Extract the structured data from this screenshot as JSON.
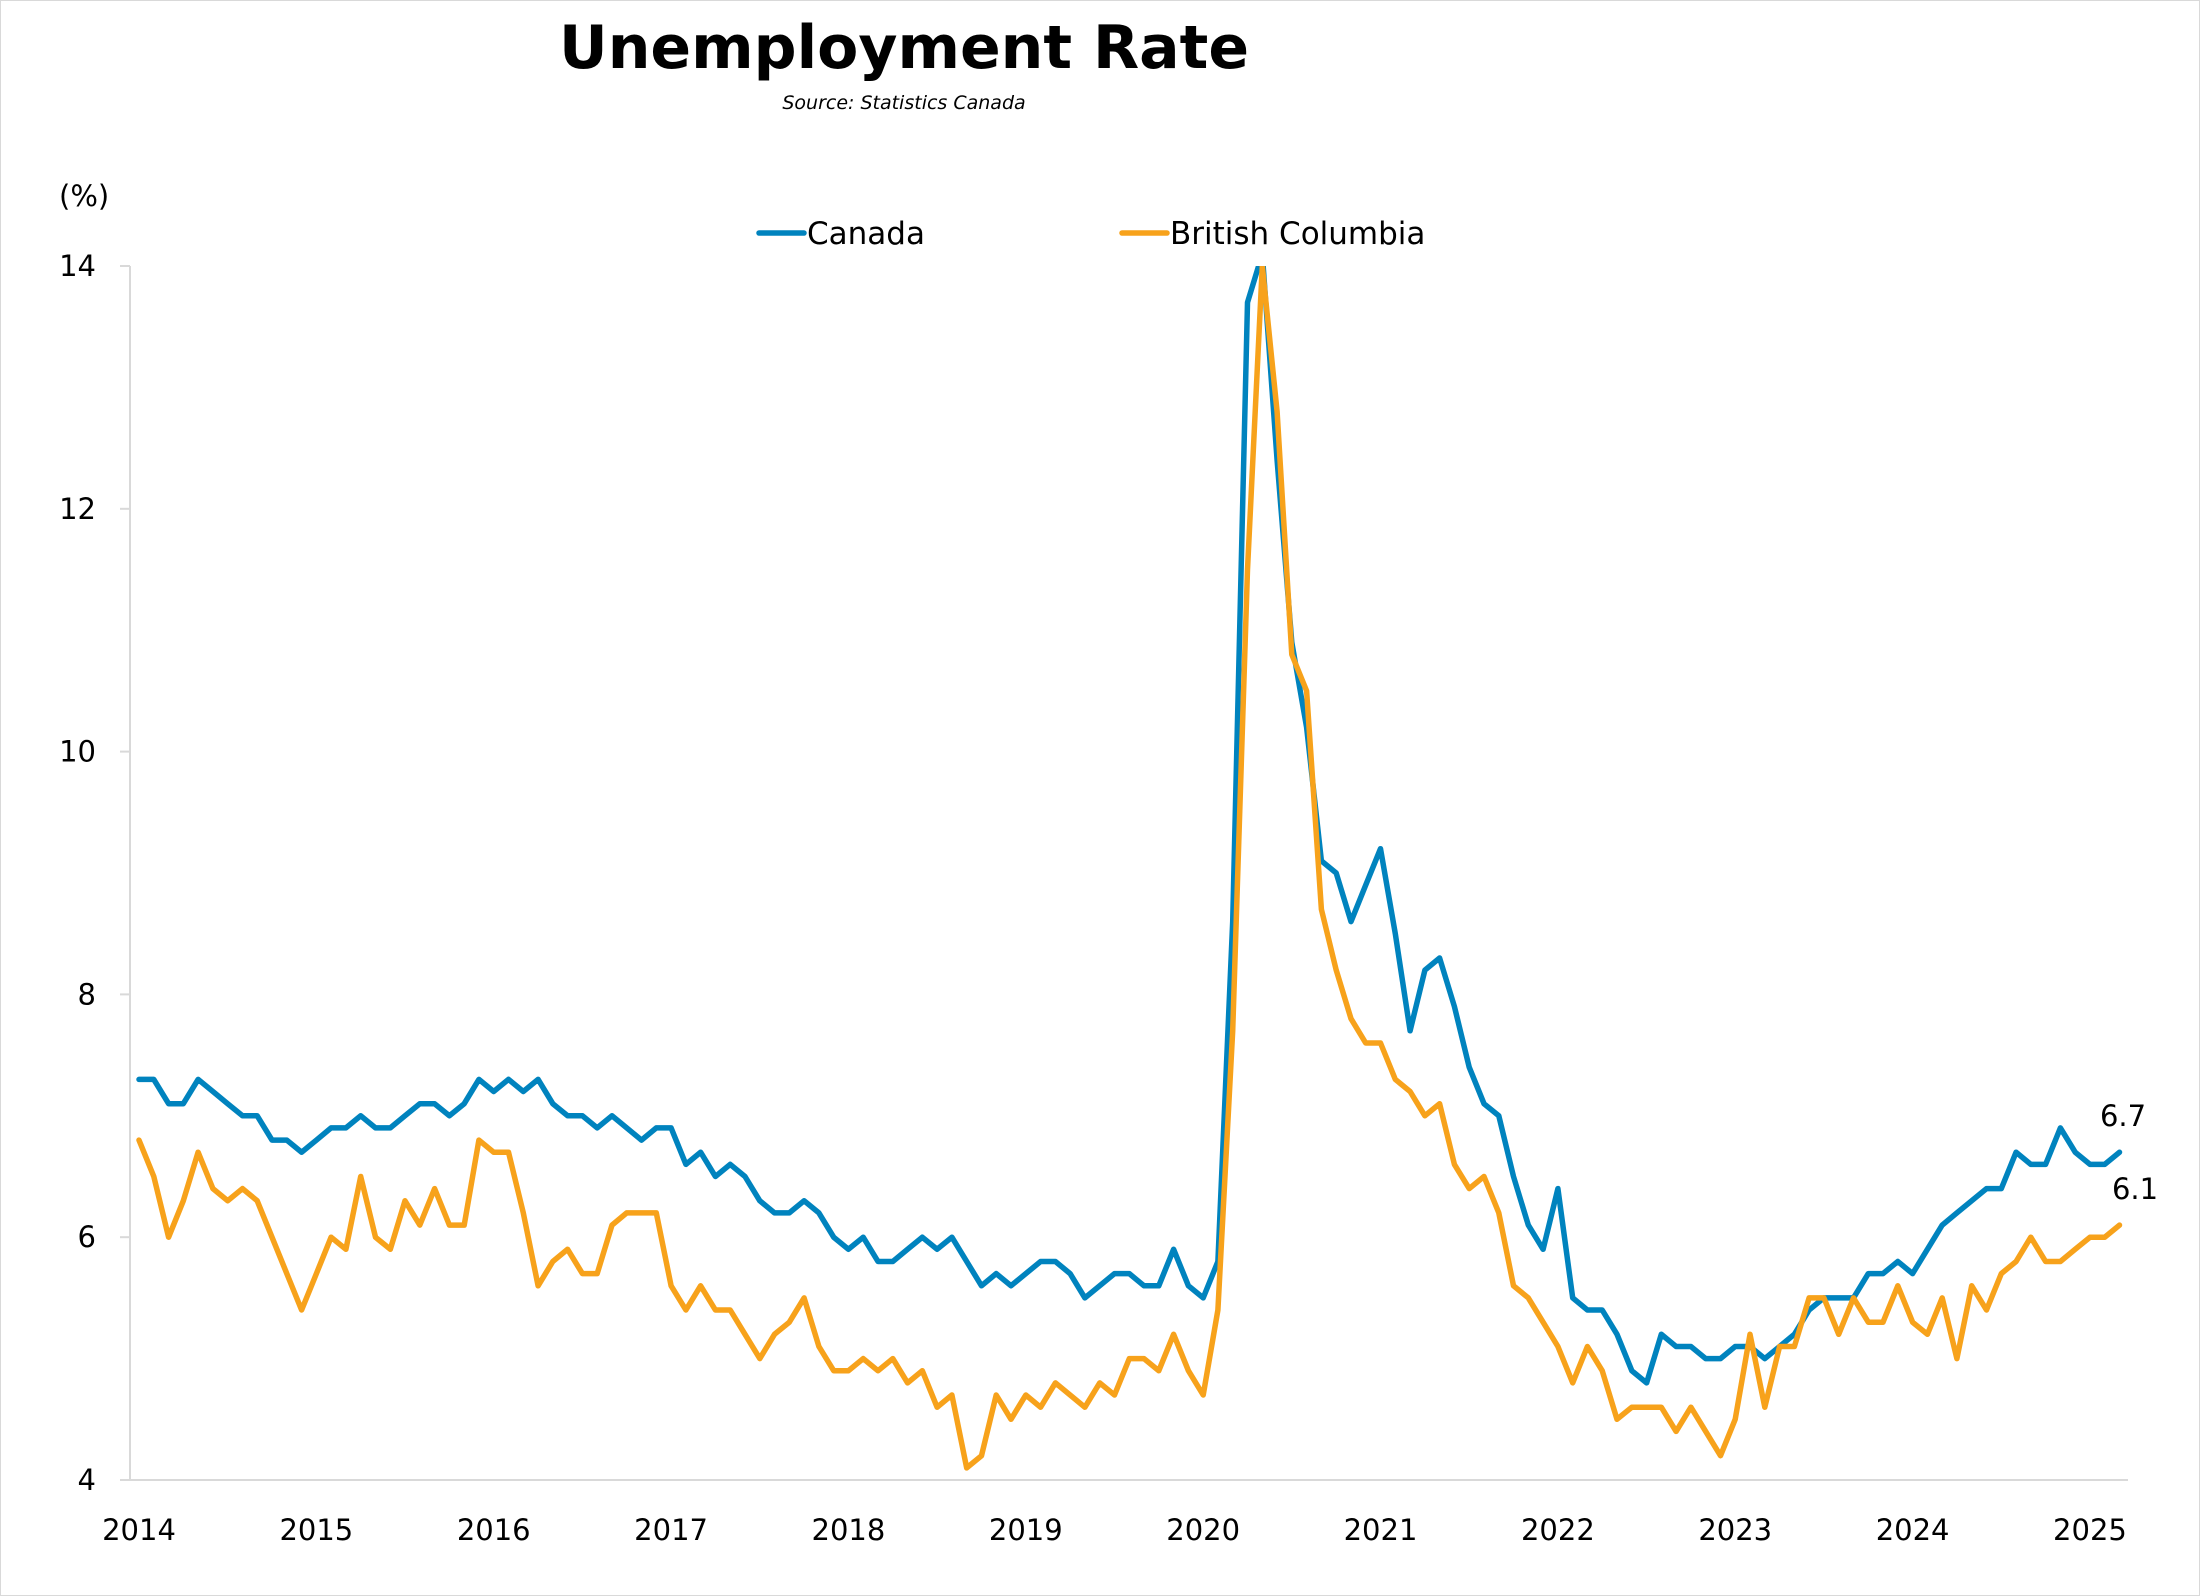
{
  "chart_data": {
    "type": "line",
    "title": "Unemployment Rate",
    "subtitle": "Source: Statistics Canada",
    "xlabel": "",
    "ylabel": "(%)",
    "ylim": [
      4,
      14
    ],
    "yticks": [
      "4",
      "6",
      "8",
      "10",
      "12",
      "14"
    ],
    "xticks": [
      "2014",
      "2015",
      "2016",
      "2017",
      "2018",
      "2019",
      "2020",
      "2021",
      "2022",
      "2023",
      "2024",
      "2025"
    ],
    "x_start": "2014-01",
    "x_end": "2025-03",
    "frequency": "monthly",
    "grid": false,
    "legend_position": "top-center",
    "series": [
      {
        "name": "Canada",
        "color": "#0083BE",
        "end_label": "6.7",
        "values": [
          7.3,
          7.3,
          7.1,
          7.1,
          7.3,
          7.2,
          7.1,
          7.0,
          7.0,
          6.8,
          6.8,
          6.7,
          6.8,
          6.9,
          6.9,
          7.0,
          6.9,
          6.9,
          7.0,
          7.1,
          7.1,
          7.0,
          7.1,
          7.3,
          7.2,
          7.3,
          7.2,
          7.3,
          7.1,
          7.0,
          7.0,
          6.9,
          7.0,
          6.9,
          6.8,
          6.9,
          6.9,
          6.6,
          6.7,
          6.5,
          6.6,
          6.5,
          6.3,
          6.2,
          6.2,
          6.3,
          6.2,
          6.0,
          5.9,
          6.0,
          5.8,
          5.8,
          5.9,
          6.0,
          5.9,
          6.0,
          5.8,
          5.6,
          5.7,
          5.6,
          5.7,
          5.8,
          5.8,
          5.7,
          5.5,
          5.6,
          5.7,
          5.7,
          5.6,
          5.6,
          5.9,
          5.6,
          5.5,
          5.8,
          8.6,
          13.7,
          14.1,
          12.4,
          10.9,
          10.2,
          9.1,
          9.0,
          8.6,
          8.9,
          9.2,
          8.5,
          7.7,
          8.2,
          8.3,
          7.9,
          7.4,
          7.1,
          7.0,
          6.5,
          6.1,
          5.9,
          6.4,
          5.5,
          5.4,
          5.4,
          5.2,
          4.9,
          4.8,
          5.2,
          5.1,
          5.1,
          5.0,
          5.0,
          5.1,
          5.1,
          5.0,
          5.1,
          5.2,
          5.4,
          5.5,
          5.5,
          5.5,
          5.7,
          5.7,
          5.8,
          5.7,
          5.9,
          6.1,
          6.2,
          6.3,
          6.4,
          6.4,
          6.7,
          6.6,
          6.6,
          6.9,
          6.7,
          6.6,
          6.6,
          6.7
        ]
      },
      {
        "name": "British Columbia",
        "color": "#F7A21B",
        "end_label": "6.1",
        "values": [
          6.8,
          6.5,
          6.0,
          6.3,
          6.7,
          6.4,
          6.3,
          6.4,
          6.3,
          6.0,
          5.7,
          5.4,
          5.7,
          6.0,
          5.9,
          6.5,
          6.0,
          5.9,
          6.3,
          6.1,
          6.4,
          6.1,
          6.1,
          6.8,
          6.7,
          6.7,
          6.2,
          5.6,
          5.8,
          5.9,
          5.7,
          5.7,
          6.1,
          6.2,
          6.2,
          6.2,
          5.6,
          5.4,
          5.6,
          5.4,
          5.4,
          5.2,
          5.0,
          5.2,
          5.3,
          5.5,
          5.1,
          4.9,
          4.9,
          5.0,
          4.9,
          5.0,
          4.8,
          4.9,
          4.6,
          4.7,
          4.1,
          4.2,
          4.7,
          4.5,
          4.7,
          4.6,
          4.8,
          4.7,
          4.6,
          4.8,
          4.7,
          5.0,
          5.0,
          4.9,
          5.2,
          4.9,
          4.7,
          5.4,
          7.7,
          11.5,
          14.0,
          12.8,
          10.8,
          10.5,
          8.7,
          8.2,
          7.8,
          7.6,
          7.6,
          7.3,
          7.2,
          7.0,
          7.1,
          6.6,
          6.4,
          6.5,
          6.2,
          5.6,
          5.5,
          5.3,
          5.1,
          4.8,
          5.1,
          4.9,
          4.5,
          4.6,
          4.6,
          4.6,
          4.4,
          4.6,
          4.4,
          4.2,
          4.5,
          5.2,
          4.6,
          5.1,
          5.1,
          5.5,
          5.5,
          5.2,
          5.5,
          5.3,
          5.3,
          5.6,
          5.3,
          5.2,
          5.5,
          5.0,
          5.6,
          5.4,
          5.7,
          5.8,
          6.0,
          5.8,
          5.8,
          5.9,
          6.0,
          6.0,
          6.1
        ]
      }
    ]
  }
}
